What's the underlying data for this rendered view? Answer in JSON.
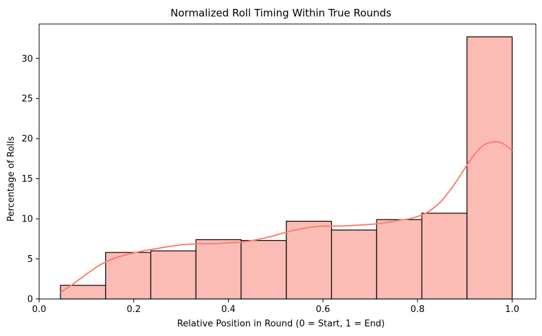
{
  "chart_data": {
    "type": "bar",
    "title": "Normalized Roll Timing Within True Rounds",
    "xlabel": "Relative Position in Round (0 = Start, 1 = End)",
    "ylabel": "Percentage of Rolls",
    "xlim": [
      0.0,
      1.05
    ],
    "ylim": [
      0,
      34.3
    ],
    "xticks": [
      0.0,
      0.2,
      0.4,
      0.6,
      0.8,
      1.0
    ],
    "xtick_labels": [
      "0.0",
      "0.2",
      "0.4",
      "0.6",
      "0.8",
      "1.0"
    ],
    "yticks": [
      0,
      5,
      10,
      15,
      20,
      25,
      30
    ],
    "ytick_labels": [
      "0",
      "5",
      "10",
      "15",
      "20",
      "25",
      "30"
    ],
    "bins": [
      {
        "x0": 0.045,
        "x1": 0.1405,
        "value": 1.7
      },
      {
        "x0": 0.1405,
        "x1": 0.236,
        "value": 5.8
      },
      {
        "x0": 0.236,
        "x1": 0.3315,
        "value": 6.0
      },
      {
        "x0": 0.3315,
        "x1": 0.427,
        "value": 7.4
      },
      {
        "x0": 0.427,
        "x1": 0.5225,
        "value": 7.3
      },
      {
        "x0": 0.5225,
        "x1": 0.618,
        "value": 9.7
      },
      {
        "x0": 0.618,
        "x1": 0.7135,
        "value": 8.6
      },
      {
        "x0": 0.7135,
        "x1": 0.809,
        "value": 9.9
      },
      {
        "x0": 0.809,
        "x1": 0.9045,
        "value": 10.7
      },
      {
        "x0": 0.9045,
        "x1": 1.0,
        "value": 32.7
      }
    ],
    "kde": {
      "x": [
        0.045,
        0.07,
        0.1,
        0.13,
        0.16,
        0.19,
        0.22,
        0.25,
        0.28,
        0.31,
        0.34,
        0.37,
        0.4,
        0.43,
        0.46,
        0.49,
        0.52,
        0.55,
        0.58,
        0.61,
        0.64,
        0.67,
        0.7,
        0.73,
        0.76,
        0.79,
        0.82,
        0.85,
        0.88,
        0.9,
        0.92,
        0.94,
        0.96,
        0.97,
        0.98,
        0.99,
        1.0
      ],
      "y": [
        0.8,
        1.8,
        3.1,
        4.3,
        5.1,
        5.6,
        6.0,
        6.3,
        6.6,
        6.8,
        6.9,
        6.9,
        7.0,
        7.1,
        7.4,
        7.8,
        8.3,
        8.7,
        9.0,
        9.1,
        9.1,
        9.2,
        9.3,
        9.5,
        9.8,
        10.1,
        10.8,
        12.2,
        14.5,
        16.3,
        18.0,
        19.2,
        19.6,
        19.6,
        19.4,
        19.0,
        18.5
      ]
    },
    "colors": {
      "bar_fill": "#fbbcb6",
      "bar_edge": "#000000",
      "kde_line": "#fa8072"
    },
    "grid": false,
    "legend": "none"
  }
}
